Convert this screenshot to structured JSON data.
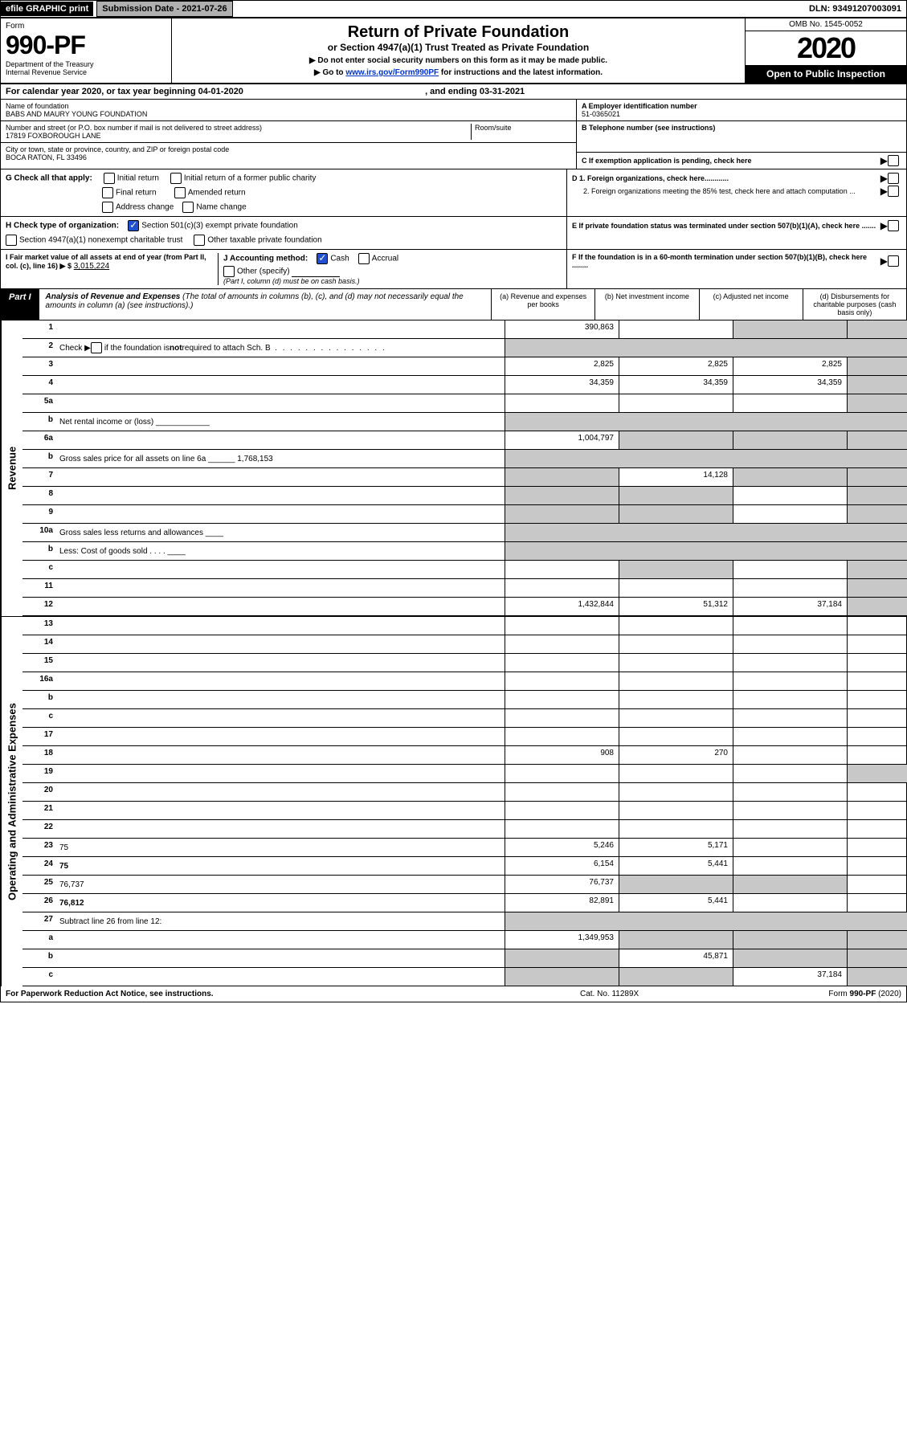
{
  "topbar": {
    "efile": "efile GRAPHIC print",
    "submission": "Submission Date - 2021-07-26",
    "dln": "DLN: 93491207003091"
  },
  "header": {
    "formlabel": "Form",
    "formnum": "990-PF",
    "dept": "Department of the Treasury",
    "irs": "Internal Revenue Service",
    "title": "Return of Private Foundation",
    "subtitle": "or Section 4947(a)(1) Trust Treated as Private Foundation",
    "instr1": "▶ Do not enter social security numbers on this form as it may be made public.",
    "instr2_pre": "▶ Go to ",
    "instr2_link": "www.irs.gov/Form990PF",
    "instr2_post": " for instructions and the latest information.",
    "omb": "OMB No. 1545-0052",
    "year": "2020",
    "open": "Open to Public Inspection"
  },
  "calendar": {
    "text_pre": "For calendar year 2020, or tax year beginning ",
    "begin": "04-01-2020",
    "mid": " , and ending ",
    "end": "03-31-2021"
  },
  "foundation": {
    "name_label": "Name of foundation",
    "name": "BABS AND MAURY YOUNG FOUNDATION",
    "addr_label": "Number and street (or P.O. box number if mail is not delivered to street address)",
    "addr": "17819 FOXBOROUGH LANE",
    "room_label": "Room/suite",
    "city_label": "City or town, state or province, country, and ZIP or foreign postal code",
    "city": "BOCA RATON, FL  33496",
    "ein_label": "A Employer identification number",
    "ein": "51-0365021",
    "phone_label": "B Telephone number (see instructions)",
    "c_label": "C If exemption application is pending, check here"
  },
  "checks": {
    "g_label": "G Check all that apply:",
    "g1": "Initial return",
    "g2": "Initial return of a former public charity",
    "g3": "Final return",
    "g4": "Amended return",
    "g5": "Address change",
    "g6": "Name change",
    "h_label": "H Check type of organization:",
    "h1": "Section 501(c)(3) exempt private foundation",
    "h2": "Section 4947(a)(1) nonexempt charitable trust",
    "h3": "Other taxable private foundation",
    "i_label": "I Fair market value of all assets at end of year (from Part II, col. (c), line 16) ▶ $",
    "i_value": "3,015,224",
    "j_label": "J Accounting method:",
    "j1": "Cash",
    "j2": "Accrual",
    "j3": "Other (specify)",
    "j_note": "(Part I, column (d) must be on cash basis.)",
    "d1": "D 1. Foreign organizations, check here............",
    "d2": "2. Foreign organizations meeting the 85% test, check here and attach computation ...",
    "e": "E  If private foundation status was terminated under section 507(b)(1)(A), check here .......",
    "f": "F  If the foundation is in a 60-month termination under section 507(b)(1)(B), check here ........"
  },
  "part1": {
    "tab": "Part I",
    "title_bold": "Analysis of Revenue and Expenses",
    "title_note": " (The total of amounts in columns (b), (c), and (d) may not necessarily equal the amounts in column (a) (see instructions).)",
    "col_a": "(a)   Revenue and expenses per books",
    "col_b": "(b)  Net investment income",
    "col_c": "(c)  Adjusted net income",
    "col_d": "(d)  Disbursements for charitable purposes (cash basis only)"
  },
  "side": {
    "revenue": "Revenue",
    "expenses": "Operating and Administrative Expenses"
  },
  "lines": [
    {
      "n": "1",
      "d": "",
      "a": "390,863",
      "b": "",
      "c": "",
      "greyB": false,
      "greyC": true,
      "greyD": true
    },
    {
      "n": "2",
      "d": "Check ▶ ☐ if the foundation is not required to attach Sch. B",
      "noData": true
    },
    {
      "n": "3",
      "d": "",
      "a": "2,825",
      "b": "2,825",
      "c": "2,825",
      "greyD": true
    },
    {
      "n": "4",
      "d": "",
      "a": "34,359",
      "b": "34,359",
      "c": "34,359",
      "greyD": true
    },
    {
      "n": "5a",
      "d": "",
      "a": "",
      "b": "",
      "c": "",
      "greyD": true
    },
    {
      "n": "b",
      "d": "Net rental income or (loss)  ____________",
      "noData": true
    },
    {
      "n": "6a",
      "d": "",
      "a": "1,004,797",
      "b": "",
      "c": "",
      "greyB": true,
      "greyC": true,
      "greyD": true
    },
    {
      "n": "b",
      "d": "Gross sales price for all assets on line 6a ______ 1,768,153",
      "noData": true
    },
    {
      "n": "7",
      "d": "",
      "a": "",
      "b": "14,128",
      "c": "",
      "greyA": true,
      "greyC": true,
      "greyD": true
    },
    {
      "n": "8",
      "d": "",
      "a": "",
      "b": "",
      "c": "",
      "greyA": true,
      "greyB": true,
      "greyD": true
    },
    {
      "n": "9",
      "d": "",
      "a": "",
      "b": "",
      "c": "",
      "greyA": true,
      "greyB": true,
      "greyD": true
    },
    {
      "n": "10a",
      "d": "Gross sales less returns and allowances ____",
      "noData": true
    },
    {
      "n": "b",
      "d": "Less: Cost of goods sold  .  .  .  . ____",
      "noData": true
    },
    {
      "n": "c",
      "d": "",
      "a": "",
      "b": "",
      "c": "",
      "greyB": true,
      "greyD": true
    },
    {
      "n": "11",
      "d": "",
      "a": "",
      "b": "",
      "c": "",
      "greyD": true
    },
    {
      "n": "12",
      "d": "",
      "bold": true,
      "a": "1,432,844",
      "b": "51,312",
      "c": "37,184",
      "greyD": true
    }
  ],
  "exp_lines": [
    {
      "n": "13",
      "d": "",
      "a": "",
      "b": "",
      "c": ""
    },
    {
      "n": "14",
      "d": "",
      "a": "",
      "b": "",
      "c": ""
    },
    {
      "n": "15",
      "d": "",
      "a": "",
      "b": "",
      "c": ""
    },
    {
      "n": "16a",
      "d": "",
      "a": "",
      "b": "",
      "c": ""
    },
    {
      "n": "b",
      "d": "",
      "a": "",
      "b": "",
      "c": ""
    },
    {
      "n": "c",
      "d": "",
      "a": "",
      "b": "",
      "c": ""
    },
    {
      "n": "17",
      "d": "",
      "a": "",
      "b": "",
      "c": ""
    },
    {
      "n": "18",
      "d": "",
      "a": "908",
      "b": "270",
      "c": ""
    },
    {
      "n": "19",
      "d": "",
      "a": "",
      "b": "",
      "c": "",
      "greyD": true
    },
    {
      "n": "20",
      "d": "",
      "a": "",
      "b": "",
      "c": ""
    },
    {
      "n": "21",
      "d": "",
      "a": "",
      "b": "",
      "c": ""
    },
    {
      "n": "22",
      "d": "",
      "a": "",
      "b": "",
      "c": ""
    },
    {
      "n": "23",
      "d": "75",
      "a": "5,246",
      "b": "5,171",
      "c": ""
    },
    {
      "n": "24",
      "d": "75",
      "bold": true,
      "a": "6,154",
      "b": "5,441",
      "c": ""
    },
    {
      "n": "25",
      "d": "76,737",
      "a": "76,737",
      "b": "",
      "c": "",
      "greyB": true,
      "greyC": true
    },
    {
      "n": "26",
      "d": "76,812",
      "bold": true,
      "a": "82,891",
      "b": "5,441",
      "c": ""
    },
    {
      "n": "27",
      "d": "Subtract line 26 from line 12:",
      "noData": true
    },
    {
      "n": "a",
      "d": "",
      "bold": true,
      "a": "1,349,953",
      "b": "",
      "c": "",
      "greyB": true,
      "greyC": true,
      "greyD": true
    },
    {
      "n": "b",
      "d": "",
      "bold": true,
      "a": "",
      "b": "45,871",
      "c": "",
      "greyA": true,
      "greyC": true,
      "greyD": true
    },
    {
      "n": "c",
      "d": "",
      "bold": true,
      "a": "",
      "b": "",
      "c": "37,184",
      "greyA": true,
      "greyB": true,
      "greyD": true
    }
  ],
  "footer": {
    "left": "For Paperwork Reduction Act Notice, see instructions.",
    "cat": "Cat. No. 11289X",
    "form": "Form 990-PF (2020)"
  },
  "colors": {
    "black": "#000000",
    "grey": "#c8c8c8",
    "link": "#0033cc",
    "checkblue": "#2050d0"
  }
}
